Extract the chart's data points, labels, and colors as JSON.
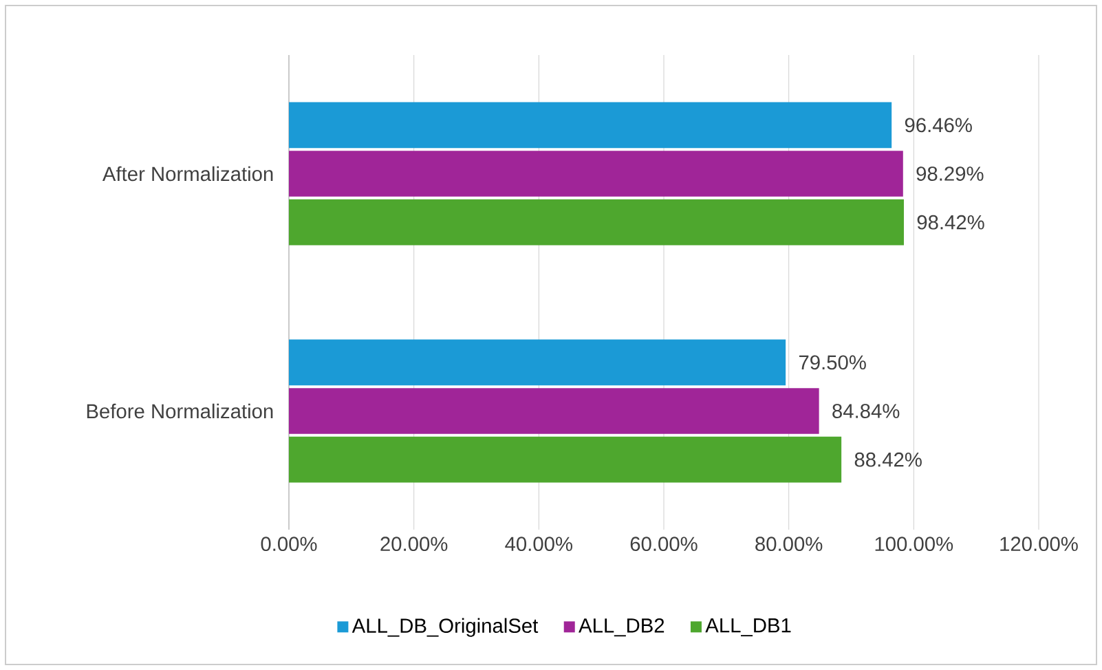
{
  "chart_data": {
    "type": "bar",
    "orientation": "horizontal",
    "categories": [
      "After Normalization",
      "Before Normalization"
    ],
    "series": [
      {
        "name": "ALL_DB_OriginalSet",
        "color": "#1b9ad6",
        "values": [
          96.46,
          79.5
        ],
        "value_labels": [
          "96.46%",
          "79.50%"
        ]
      },
      {
        "name": "ALL_DB2",
        "color": "#a02598",
        "values": [
          98.29,
          84.84
        ],
        "value_labels": [
          "98.29%",
          "84.84%"
        ]
      },
      {
        "name": "ALL_DB1",
        "color": "#4ea72e",
        "values": [
          98.42,
          88.42
        ],
        "value_labels": [
          "98.42%",
          "88.42%"
        ]
      }
    ],
    "xlim": [
      0,
      120
    ],
    "xticks": [
      {
        "value": 0,
        "label": "0.00%"
      },
      {
        "value": 20,
        "label": "20.00%"
      },
      {
        "value": 40,
        "label": "40.00%"
      },
      {
        "value": 60,
        "label": "60.00%"
      },
      {
        "value": 80,
        "label": "80.00%"
      },
      {
        "value": 100,
        "label": "100.00%"
      },
      {
        "value": 120,
        "label": "120.00%"
      }
    ],
    "grid": "x",
    "legend": "bottom"
  }
}
